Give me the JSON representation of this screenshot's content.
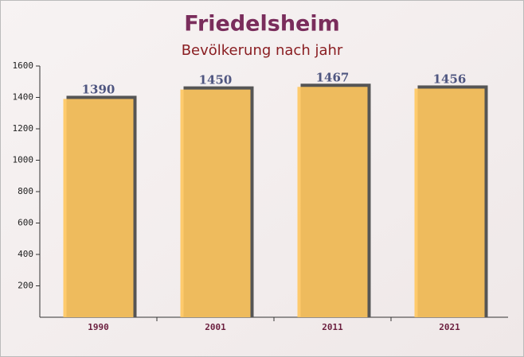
{
  "chart_data": {
    "type": "bar",
    "title": "Friedelsheim",
    "subtitle": "Bevölkerung nach jahr",
    "categories": [
      "1990",
      "2001",
      "2011",
      "2021"
    ],
    "values": [
      1390,
      1450,
      1467,
      1456
    ],
    "color": "#ffc65e",
    "ylim": [
      0,
      1600
    ],
    "yticks": [
      200,
      400,
      600,
      800,
      1000,
      1200,
      1400,
      1600
    ],
    "grid": false
  }
}
